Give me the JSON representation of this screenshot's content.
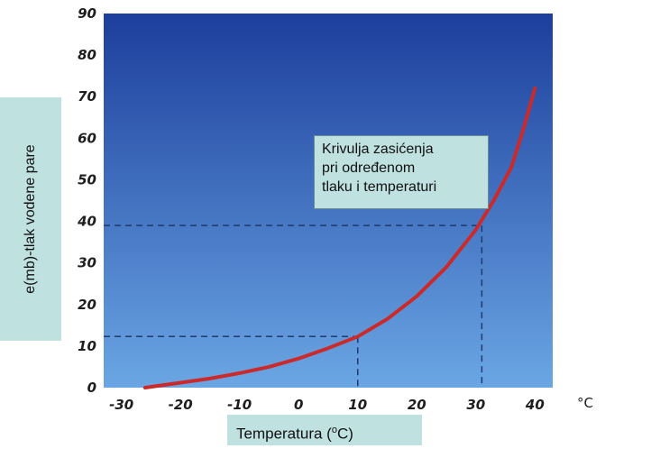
{
  "chart_data": {
    "type": "line",
    "title": "",
    "xlabel": "Temperatura (°C)",
    "xlabel_parts": {
      "main": "Temperatura (",
      "sup": "o",
      "after": "C)"
    },
    "ylabel": "e(mb)-tlak vodene pare",
    "x_unit_label": "°C",
    "xlim": [
      -33,
      43
    ],
    "ylim": [
      0,
      90
    ],
    "x_ticks": [
      -30,
      -20,
      -10,
      0,
      10,
      20,
      30,
      40
    ],
    "x_tick_labels": [
      "-30",
      "-20",
      "-10",
      "0",
      "10",
      "20",
      "30",
      "40"
    ],
    "y_ticks": [
      0,
      10,
      20,
      30,
      40,
      50,
      60,
      70,
      80,
      90
    ],
    "y_tick_labels": [
      "0",
      "10",
      "20",
      "30",
      "40",
      "50",
      "60",
      "70",
      "80",
      "90"
    ],
    "grid": false,
    "series": [
      {
        "color": "#cc2a2a",
        "x": [
          -26,
          -20,
          -15,
          -10,
          -5,
          0,
          5,
          10,
          15,
          20,
          25,
          30,
          33,
          36,
          38,
          40
        ],
        "y": [
          0,
          1.2,
          2.2,
          3.5,
          5,
          7,
          9.5,
          12.3,
          16.5,
          22,
          29,
          38,
          45,
          53,
          62,
          72
        ]
      }
    ],
    "reference_lines": [
      {
        "x": 10,
        "y": 12.3,
        "style": "dashed"
      },
      {
        "x": 31,
        "y": 39,
        "style": "dashed"
      }
    ],
    "annotation": {
      "lines": [
        "Krivulja zasićenja",
        "pri određenom",
        "tlaku i temperaturi"
      ]
    },
    "colors": {
      "background_top": "#1c3e9c",
      "background_bottom": "#6aa6e4",
      "label_box": "#bfe1e0",
      "dashed": "#1f3a6e"
    }
  }
}
